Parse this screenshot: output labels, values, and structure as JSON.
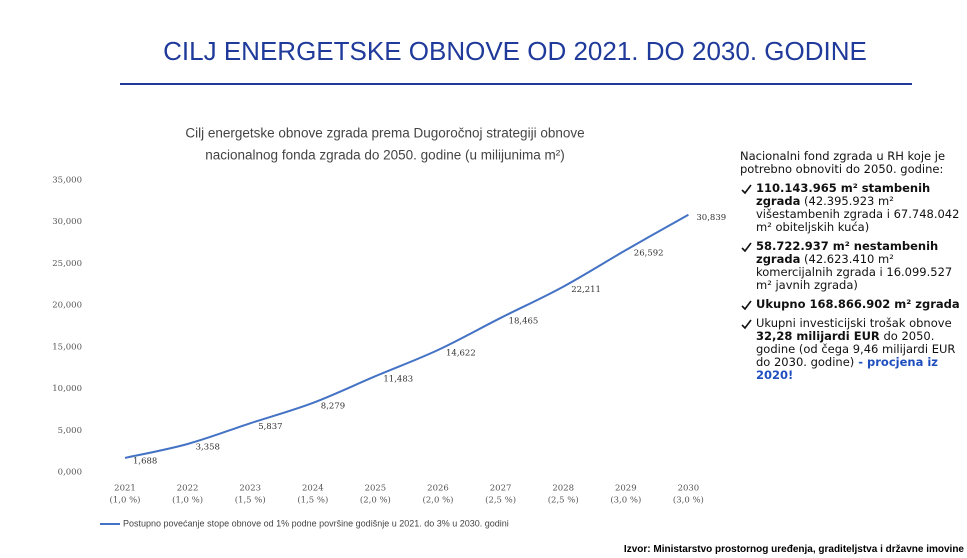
{
  "slide_title": "CILJ ENERGETSKE OBNOVE OD 2021. DO 2030. GODINE",
  "chart_data": {
    "type": "line",
    "title": [
      "Cilj energetske obnove zgrada prema Dugoročnoj strategiji obnove",
      "nacionalnog fonda zgrada do 2050. godine (u milijunima m²)"
    ],
    "categories": [
      "2021",
      "2022",
      "2023",
      "2024",
      "2025",
      "2026",
      "2027",
      "2028",
      "2029",
      "2030"
    ],
    "category_sublabels": [
      "(1,0 %)",
      "(1,0 %)",
      "(1,5 %)",
      "(1,5 %)",
      "(2,0 %)",
      "(2,0 %)",
      "(2,5 %)",
      "(2,5 %)",
      "(3,0 %)",
      "(3,0 %)"
    ],
    "series": [
      {
        "name": "Postupno povećanje stope obnove od 1% podne površine godišnje u 2021. do 3% u 2030. godini",
        "color": "#4472c4",
        "values": [
          1688,
          3358,
          5837,
          8279,
          11483,
          14622,
          18465,
          22211,
          26592,
          30839
        ],
        "value_labels": [
          "1,688",
          "3,358",
          "5,837",
          "8,279",
          "11,483",
          "14,622",
          "18,465",
          "22,211",
          "26,592",
          "30,839"
        ]
      }
    ],
    "ylim": [
      0,
      35000
    ],
    "yticks": [
      {
        "value": 0,
        "label": "0,000"
      },
      {
        "value": 5000,
        "label": "5,000"
      },
      {
        "value": 10000,
        "label": "10,000"
      },
      {
        "value": 15000,
        "label": "15,000"
      },
      {
        "value": 20000,
        "label": "20,000"
      },
      {
        "value": 25000,
        "label": "25,000"
      },
      {
        "value": 30000,
        "label": "30,000"
      },
      {
        "value": 35000,
        "label": "35,000"
      }
    ],
    "legend": "bottom"
  },
  "side_panel": {
    "intro": "Nacionalni fond zgrada u RH koje je potrebno obnoviti do 2050. godine:",
    "items": [
      [
        {
          "text": "110.143.965 m² stambenih zgrada",
          "bold": true
        },
        {
          "text": " (42.395.923 m² višestambenih zgrada i 67.748.042 m² obiteljskih kuća)"
        }
      ],
      [
        {
          "text": "58.722.937 m² nestambenih zgrada",
          "bold": true
        },
        {
          "text": " (42.623.410 m² komercijalnih zgrada i 16.099.527 m² javnih zgrada)"
        }
      ],
      [
        {
          "text": "Ukupno 168.866.902 m² zgrada",
          "bold": true
        }
      ],
      [
        {
          "text": "Ukupni investicijski trošak obnove "
        },
        {
          "text": "32,28 milijardi EUR",
          "bold": true
        },
        {
          "text": " do 2050. godine (od čega 9,46 milijardi EUR do 2030. godine)"
        },
        {
          "text": " - procjena iz 2020!",
          "bold": true,
          "color": "#1f4fbf"
        }
      ]
    ]
  },
  "source": "Izvor: Ministarstvo prostornog uređenja, graditeljstva i državne imovine"
}
